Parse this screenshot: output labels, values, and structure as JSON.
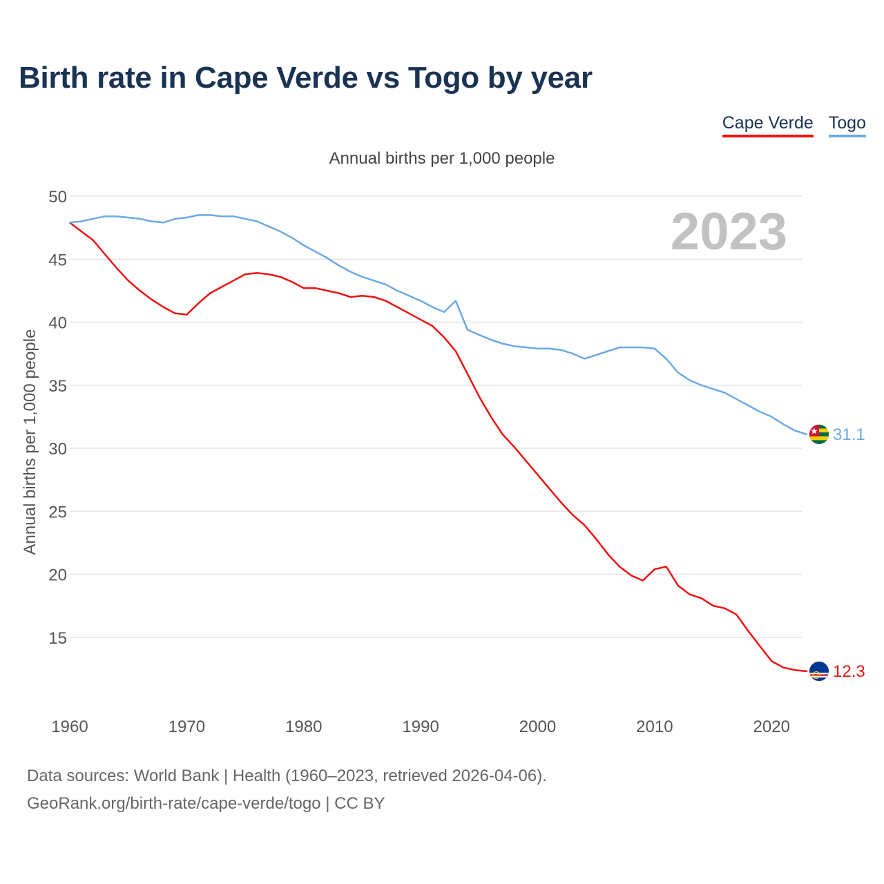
{
  "title": "Birth rate in Cape Verde vs Togo by year",
  "legend": {
    "cape_verde": "Cape Verde",
    "togo": "Togo"
  },
  "subtitle": "Annual births per 1,000 people",
  "footer": {
    "line1": "Data sources: World Bank | Health (1960–2023, retrieved 2026-04-06).",
    "line2": "GeoRank.org/birth-rate/cape-verde/togo | CC BY"
  },
  "chart_data": {
    "type": "line",
    "title": "Birth rate in Cape Verde vs Togo by year",
    "xlabel": "",
    "ylabel": "Annual births per 1,000 people",
    "xlim": [
      1960,
      2024
    ],
    "ylim": [
      10,
      50
    ],
    "yticks": [
      15,
      20,
      25,
      30,
      35,
      40,
      45,
      50
    ],
    "xticks": [
      1960,
      1970,
      1980,
      1990,
      2000,
      2010,
      2020
    ],
    "year_label": "2023",
    "grid": true,
    "colors": {
      "cape_verde": "#ee1111",
      "togo": "#6aaae4",
      "year_label": "#c2c2c2"
    },
    "x": [
      1960,
      1961,
      1962,
      1963,
      1964,
      1965,
      1966,
      1967,
      1968,
      1969,
      1970,
      1971,
      1972,
      1973,
      1974,
      1975,
      1976,
      1977,
      1978,
      1979,
      1980,
      1981,
      1982,
      1983,
      1984,
      1985,
      1986,
      1987,
      1988,
      1989,
      1990,
      1991,
      1992,
      1993,
      1994,
      1995,
      1996,
      1997,
      1998,
      1999,
      2000,
      2001,
      2002,
      2003,
      2004,
      2005,
      2006,
      2007,
      2008,
      2009,
      2010,
      2011,
      2012,
      2013,
      2014,
      2015,
      2016,
      2017,
      2018,
      2019,
      2020,
      2021,
      2022,
      2023
    ],
    "series": [
      {
        "name": "Cape Verde",
        "flag": "cape-verde-flag",
        "end_label": "12.3",
        "values": [
          47.9,
          47.2,
          46.5,
          45.4,
          44.3,
          43.3,
          42.5,
          41.8,
          41.2,
          40.7,
          40.6,
          41.5,
          42.3,
          42.8,
          43.3,
          43.8,
          43.9,
          43.8,
          43.6,
          43.2,
          42.7,
          42.7,
          42.5,
          42.3,
          42.0,
          42.1,
          42.0,
          41.7,
          41.2,
          40.7,
          40.2,
          39.7,
          38.8,
          37.7,
          35.9,
          34.1,
          32.5,
          31.1,
          30.1,
          29.0,
          27.9,
          26.8,
          25.7,
          24.7,
          23.9,
          22.8,
          21.6,
          20.6,
          19.9,
          19.5,
          20.4,
          20.6,
          19.1,
          18.4,
          18.1,
          17.5,
          17.3,
          16.8,
          15.5,
          14.3,
          13.1,
          12.6,
          12.4,
          12.3
        ]
      },
      {
        "name": "Togo",
        "flag": "togo-flag",
        "end_label": "31.1",
        "values": [
          47.9,
          48.0,
          48.2,
          48.4,
          48.4,
          48.3,
          48.2,
          48.0,
          47.9,
          48.2,
          48.3,
          48.5,
          48.5,
          48.4,
          48.4,
          48.2,
          48.0,
          47.6,
          47.2,
          46.7,
          46.1,
          45.6,
          45.1,
          44.5,
          44.0,
          43.6,
          43.3,
          43.0,
          42.5,
          42.1,
          41.7,
          41.2,
          40.8,
          41.7,
          39.4,
          39.0,
          38.6,
          38.3,
          38.1,
          38.0,
          37.9,
          37.9,
          37.8,
          37.5,
          37.1,
          37.4,
          37.7,
          38.0,
          38.0,
          38.0,
          37.9,
          37.1,
          36.0,
          35.4,
          35.0,
          34.7,
          34.4,
          33.9,
          33.4,
          32.9,
          32.5,
          31.9,
          31.4,
          31.1
        ]
      }
    ]
  }
}
